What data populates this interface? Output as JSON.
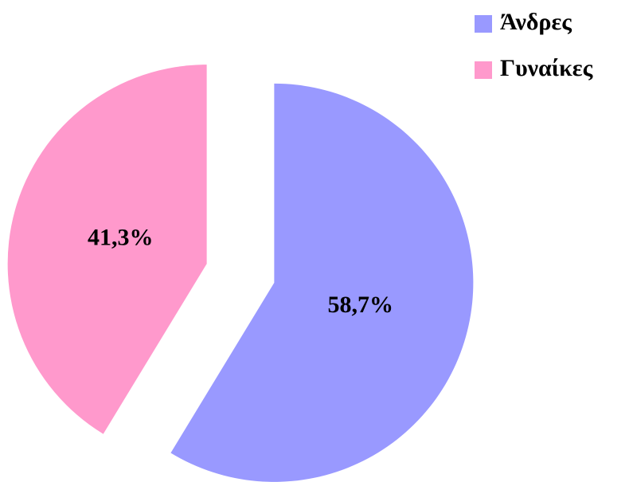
{
  "chart_data": {
    "type": "pie",
    "categories": [
      "Άνδρες",
      "Γυναίκες"
    ],
    "values": [
      58.7,
      41.3
    ],
    "value_labels": [
      "58,7%",
      "41,3%"
    ],
    "colors": [
      "#9999ff",
      "#ff99cc"
    ],
    "legend": "top-right"
  }
}
